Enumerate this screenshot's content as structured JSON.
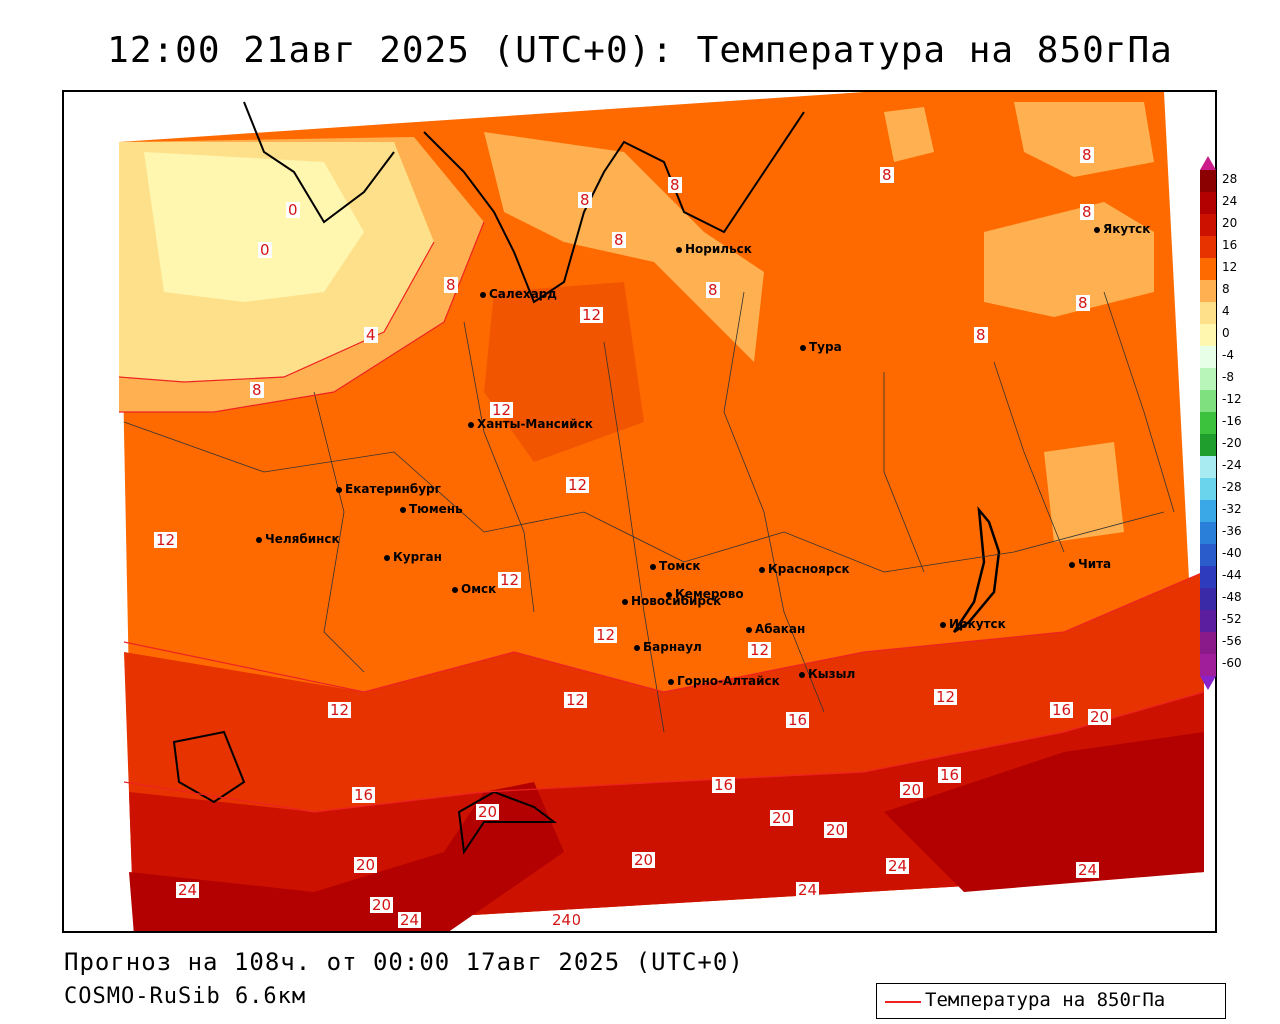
{
  "title": "12:00 21авг 2025 (UTC+0): Температура на 850гПа",
  "footer": {
    "forecast": "Прогноз на 108ч. от 00:00 17авг 2025 (UTC+0)",
    "model": "COSMO-RuSib 6.6км"
  },
  "legend": {
    "label": "Температура на 850гПа",
    "line_color": "#ee2222"
  },
  "scale": {
    "labels": [
      "28",
      "24",
      "20",
      "16",
      "12",
      "8",
      "4",
      "0",
      "-4",
      "-8",
      "-12",
      "-16",
      "-20",
      "-24",
      "-28",
      "-32",
      "-36",
      "-40",
      "-44",
      "-48",
      "-52",
      "-56",
      "-60"
    ],
    "colors": [
      "#8b0000",
      "#b30000",
      "#cc1100",
      "#e63300",
      "#ff6a00",
      "#ffb050",
      "#ffe08a",
      "#fff6b0",
      "#e6ffe6",
      "#b8f5b8",
      "#7ee07e",
      "#3cc23c",
      "#1f9e2e",
      "#a8ecf2",
      "#6ad4ec",
      "#3aa8e6",
      "#2a80d8",
      "#2a5ccc",
      "#2e3bbd",
      "#3a2aa8",
      "#5a1e9e",
      "#8a1a8a",
      "#a01e9a"
    ]
  },
  "cities": [
    {
      "name": "Норильск"
    },
    {
      "name": "Якутск"
    },
    {
      "name": "Салехард"
    },
    {
      "name": "Тура"
    },
    {
      "name": "Ханты-Мансийск"
    },
    {
      "name": "Екатеринбург"
    },
    {
      "name": "Тюмень"
    },
    {
      "name": "Челябинск"
    },
    {
      "name": "Курган"
    },
    {
      "name": "Томск"
    },
    {
      "name": "Красноярск"
    },
    {
      "name": "Омск"
    },
    {
      "name": "Новосибирск"
    },
    {
      "name": "Кемерово"
    },
    {
      "name": "Абакан"
    },
    {
      "name": "Иркутск"
    },
    {
      "name": "Чита"
    },
    {
      "name": "Барнаул"
    },
    {
      "name": "Горно-Алтайск"
    },
    {
      "name": "Кызыл"
    }
  ],
  "isotherm_labels": [
    "0",
    "0",
    "4",
    "8",
    "8",
    "8",
    "8",
    "8",
    "8",
    "8",
    "8",
    "8",
    "8",
    "8",
    "12",
    "12",
    "12",
    "12",
    "12",
    "12",
    "12",
    "12",
    "12",
    "12",
    "16",
    "16",
    "16",
    "16",
    "16",
    "20",
    "20",
    "20",
    "20",
    "20",
    "20",
    "20",
    "20",
    "20",
    "24",
    "24",
    "24",
    "24",
    "24",
    "24"
  ]
}
